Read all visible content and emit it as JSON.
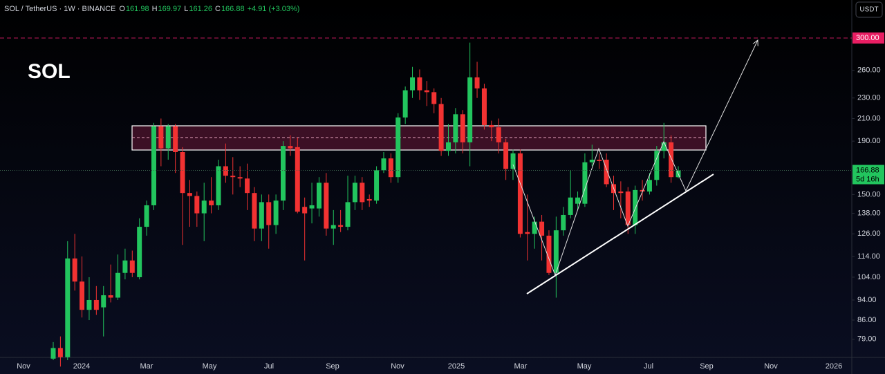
{
  "chart_data": {
    "type": "candlestick",
    "title": "SOL",
    "header": {
      "symbol": "SOL / TetherUS · 1W · BINANCE",
      "ohlc": [
        {
          "key": "O",
          "value": "161.98"
        },
        {
          "key": "H",
          "value": "169.97"
        },
        {
          "key": "L",
          "value": "161.26"
        },
        {
          "key": "C",
          "value": "166.88"
        }
      ],
      "change": "+4.91 (+3.03%)"
    },
    "currency_button": "USDT",
    "log_scale": true,
    "grid": false,
    "up_color": "#22c55e",
    "down_color": "#f23232",
    "ylim": [
      72.9,
      355
    ],
    "yticks": [
      {
        "value": 79,
        "label": "79.00"
      },
      {
        "value": 86,
        "label": "86.00"
      },
      {
        "value": 94,
        "label": "94.00"
      },
      {
        "value": 104,
        "label": "104.00"
      },
      {
        "value": 114,
        "label": "114.00"
      },
      {
        "value": 126,
        "label": "126.00"
      },
      {
        "value": 138,
        "label": "138.00"
      },
      {
        "value": 150,
        "label": "150.00"
      },
      {
        "value": 190,
        "label": "190.00"
      },
      {
        "value": 210,
        "label": "210.00"
      },
      {
        "value": 230,
        "label": "230.00"
      },
      {
        "value": 260,
        "label": "260.00"
      }
    ],
    "x_labels": [
      "Nov",
      "2024",
      "Mar",
      "May",
      "Jul",
      "Sep",
      "Nov",
      "2025",
      "Mar",
      "May",
      "Jul",
      "Sep",
      "Nov",
      "2026"
    ],
    "target_level": {
      "value": 300,
      "label": "300.00"
    },
    "last_price": {
      "value": 166.88,
      "label": "166.88"
    },
    "countdown": "5d 16h",
    "open": [
      72.5,
      76,
      73,
      113,
      102,
      90,
      94,
      91,
      96,
      95,
      106,
      112,
      104,
      130,
      143,
      203,
      184,
      203,
      181,
      151,
      149,
      138,
      146,
      143,
      170,
      163,
      162,
      161,
      151,
      129,
      145,
      131,
      146,
      186,
      185,
      142,
      141,
      141,
      158,
      129,
      131,
      130,
      145,
      158,
      147,
      146,
      167,
      176,
      162,
      211,
      238,
      252,
      238,
      236,
      224,
      182,
      189,
      214,
      189,
      252,
      240,
      204,
      202,
      189,
      168,
      180,
      127,
      126,
      133,
      125,
      106,
      128,
      137,
      144,
      144,
      173,
      175,
      175,
      157,
      152,
      152,
      131,
      153,
      152,
      160,
      182,
      189,
      161.98
    ],
    "high": [
      78,
      80,
      122,
      126,
      114,
      104,
      100,
      100,
      110,
      115,
      118,
      117,
      135,
      146,
      206,
      210,
      205,
      205,
      185,
      160,
      152,
      158,
      162,
      175,
      188,
      177,
      170,
      172,
      155,
      150,
      150,
      150,
      190,
      195,
      193,
      148,
      158,
      162,
      165,
      140,
      140,
      163,
      163,
      162,
      150,
      170,
      181,
      180,
      215,
      242,
      264,
      261,
      248,
      240,
      230,
      205,
      220,
      218,
      294,
      270,
      245,
      208,
      210,
      192,
      183,
      183,
      150,
      136,
      137,
      128,
      136,
      142,
      167,
      152,
      180,
      187,
      180,
      180,
      163,
      159,
      155,
      156,
      160,
      165,
      186,
      206,
      195,
      169.97
    ],
    "low": [
      72,
      70,
      72,
      98,
      87,
      86,
      88,
      80,
      93,
      94,
      103,
      104,
      103,
      125,
      140,
      170,
      175,
      165,
      120,
      130,
      130,
      122,
      138,
      140,
      158,
      150,
      155,
      140,
      122,
      122,
      118,
      126,
      140,
      178,
      138,
      112,
      132,
      136,
      125,
      120,
      127,
      128,
      140,
      140,
      142,
      144,
      165,
      158,
      158,
      205,
      230,
      228,
      222,
      215,
      178,
      178,
      180,
      180,
      170,
      230,
      200,
      190,
      180,
      160,
      160,
      124,
      112,
      118,
      112,
      105,
      95,
      125,
      135,
      140,
      142,
      170,
      168,
      155,
      140,
      135,
      126,
      126,
      146,
      150,
      156,
      176,
      158,
      161.26
    ],
    "close": [
      76,
      73,
      113,
      102,
      90,
      94,
      90,
      96,
      95,
      106,
      112,
      106,
      130,
      143,
      203,
      184,
      203,
      181,
      151,
      149,
      138,
      146,
      143,
      170,
      163,
      162,
      161,
      151,
      129,
      145,
      131,
      146,
      186,
      184,
      139,
      138,
      143,
      158,
      129,
      131,
      130,
      145,
      158,
      145,
      146,
      167,
      176,
      162,
      211,
      238,
      252,
      238,
      236,
      224,
      182,
      189,
      214,
      189,
      252,
      240,
      204,
      202,
      189,
      168,
      180,
      126,
      126,
      133,
      125,
      106,
      128,
      137,
      148,
      148,
      173,
      175,
      174,
      157,
      151,
      151,
      131,
      153,
      152,
      160,
      182,
      189,
      162,
      166.88
    ]
  }
}
